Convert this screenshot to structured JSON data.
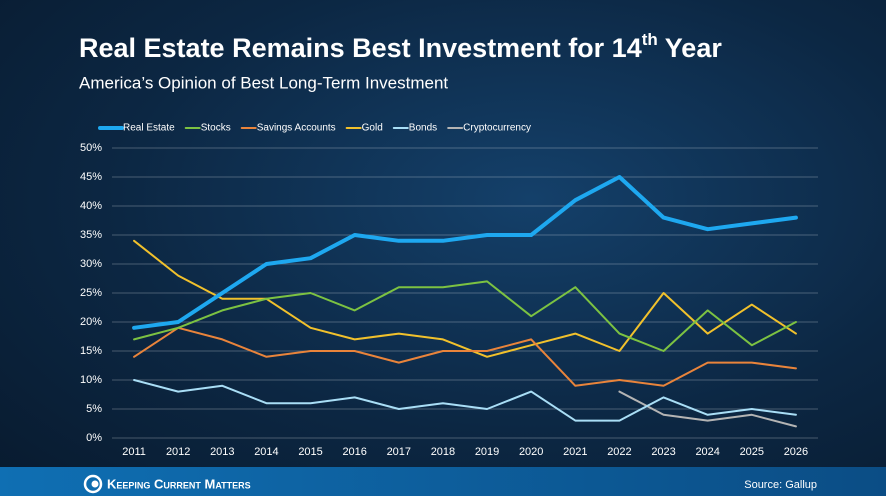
{
  "chart_data": {
    "type": "line",
    "title": {
      "main": "Real Estate Remains Best Investment for 14",
      "superscript": "th",
      "end": " Year"
    },
    "subtitle": "America’s Opinion of Best Long-Term Investment",
    "categories": [
      "2011",
      "2012",
      "2013",
      "2014",
      "2015",
      "2016",
      "2017",
      "2018",
      "2019",
      "2020",
      "2021",
      "2022",
      "2023",
      "2024",
      "2025",
      "2026"
    ],
    "series": [
      {
        "name": "Real Estate",
        "color": "#1ea8f0",
        "values": [
          19,
          20,
          25,
          30,
          31,
          35,
          34,
          34,
          35,
          35,
          41,
          45,
          38,
          36,
          37,
          38
        ]
      },
      {
        "name": "Stocks",
        "color": "#7cc242",
        "values": [
          17,
          19,
          22,
          24,
          25,
          22,
          26,
          26,
          27,
          21,
          26,
          18,
          15,
          22,
          16,
          20
        ]
      },
      {
        "name": "Savings Accounts",
        "color": "#e9843b",
        "values": [
          14,
          19,
          17,
          14,
          15,
          15,
          13,
          15,
          15,
          17,
          9,
          10,
          9,
          13,
          13,
          12
        ]
      },
      {
        "name": "Gold",
        "color": "#f1c12c",
        "values": [
          34,
          28,
          24,
          24,
          19,
          17,
          18,
          17,
          14,
          16,
          18,
          15,
          25,
          18,
          23,
          18
        ]
      },
      {
        "name": "Bonds",
        "color": "#a9def6",
        "values": [
          10,
          8,
          9,
          6,
          6,
          7,
          5,
          6,
          5,
          8,
          3,
          3,
          7,
          4,
          5,
          4
        ]
      },
      {
        "name": "Cryptocurrency",
        "color": "#b4b4b4",
        "values": [
          null,
          null,
          null,
          null,
          null,
          null,
          null,
          null,
          null,
          null,
          null,
          8,
          4,
          3,
          4,
          2
        ]
      }
    ],
    "ylim": [
      0,
      50
    ],
    "yticks": [
      {
        "value": 0,
        "label": "0%"
      },
      {
        "value": 5,
        "label": "5%"
      },
      {
        "value": 10,
        "label": "10%"
      },
      {
        "value": 15,
        "label": "15%"
      },
      {
        "value": 20,
        "label": "20%"
      },
      {
        "value": 25,
        "label": "25%"
      },
      {
        "value": 30,
        "label": "30%"
      },
      {
        "value": 35,
        "label": "35%"
      },
      {
        "value": 40,
        "label": "40%"
      },
      {
        "value": 45,
        "label": "45%"
      },
      {
        "value": 50,
        "label": "50%"
      }
    ],
    "grid": true,
    "legend": "top"
  },
  "footer": {
    "brand": "Keeping Current Matters",
    "source": "Source: Gallup"
  }
}
